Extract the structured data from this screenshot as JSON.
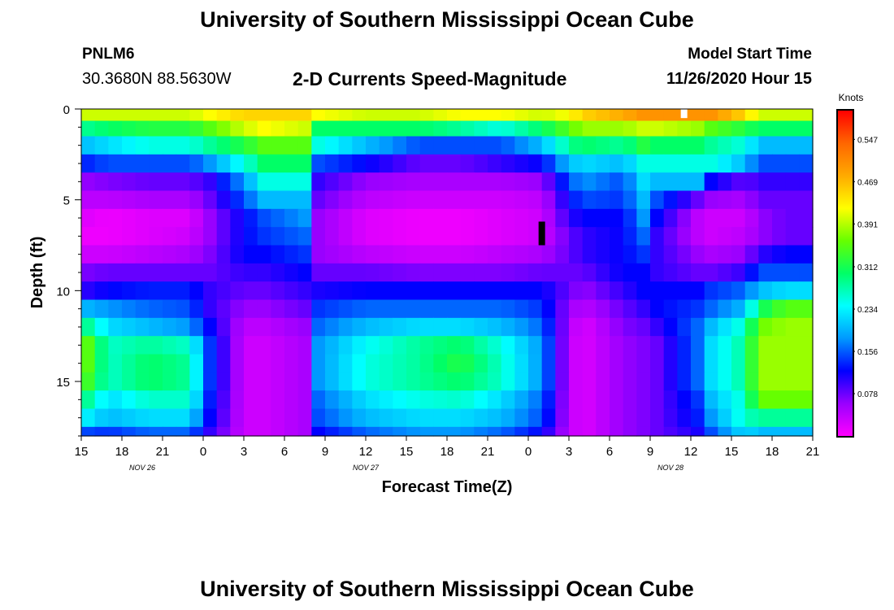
{
  "header": {
    "title": "University of Southern Mississippi Ocean Cube",
    "station_id": "PNLM6",
    "coordinates": "30.3680N 88.5630W",
    "subtitle": "2-D Currents Speed-Magnitude",
    "model_start_label": "Model Start Time",
    "model_start_value": "11/26/2020 Hour 15"
  },
  "footer": {
    "title": "University of Southern Mississippi Ocean Cube"
  },
  "chart_data": {
    "type": "heatmap",
    "title": "2-D Currents Speed-Magnitude",
    "xlabel": "Forecast Time(Z)",
    "ylabel": "Depth (ft)",
    "colorbar_label": "Knots",
    "x_range_hours": [
      0,
      54
    ],
    "y_range_ft": [
      0,
      18
    ],
    "y_inverted": true,
    "x_tick_labels": [
      "15",
      "18",
      "21",
      "0",
      "3",
      "6",
      "9",
      "12",
      "15",
      "18",
      "21",
      "0",
      "3",
      "6",
      "9",
      "12",
      "15",
      "18",
      "21"
    ],
    "x_date_labels": [
      {
        "label": "NOV  26",
        "hour": 4.5
      },
      {
        "label": "NOV  27",
        "hour": 21
      },
      {
        "label": "NOV  28",
        "hour": 43.5
      }
    ],
    "y_ticks": [
      0,
      5,
      10,
      15
    ],
    "colorbar_ticks": [
      "0.547",
      "0.469",
      "0.391",
      "0.312",
      "0.234",
      "0.156",
      "0.078"
    ],
    "colorbar_range": [
      0,
      0.6
    ],
    "colorbar_colors": [
      "#ff00ff",
      "#9900ff",
      "#0000ff",
      "#0099ff",
      "#00ffff",
      "#00ff66",
      "#66ff00",
      "#ffff00",
      "#ffaa00",
      "#ff6600",
      "#ff0000"
    ],
    "depth_bins_ft": [
      0.3,
      1.0,
      2.0,
      3.0,
      4.0,
      5.0,
      6.0,
      7.0,
      8.0,
      9.0,
      10.0,
      11.0,
      12.0,
      13.0,
      14.0,
      15.0,
      16.0,
      17.0,
      18.0
    ],
    "time_knots_hours": [
      0,
      2,
      5,
      8,
      9.5,
      12,
      13.5,
      16.5,
      17.5,
      21,
      25,
      28,
      31,
      34,
      36,
      37,
      40,
      41.5,
      42.5,
      45.5,
      46.5,
      49,
      50,
      52,
      54
    ],
    "speed_knots_by_depth": [
      [
        0.4,
        0.4,
        0.4,
        0.4,
        0.42,
        0.45,
        0.45,
        0.45,
        0.42,
        0.4,
        0.4,
        0.42,
        0.42,
        0.4,
        0.42,
        0.45,
        0.48,
        0.5,
        0.5,
        0.5,
        0.5,
        0.45,
        0.4,
        0.4,
        0.4
      ],
      [
        0.28,
        0.3,
        0.32,
        0.32,
        0.35,
        0.4,
        0.42,
        0.4,
        0.3,
        0.3,
        0.3,
        0.28,
        0.25,
        0.3,
        0.35,
        0.38,
        0.38,
        0.4,
        0.4,
        0.38,
        0.35,
        0.32,
        0.3,
        0.3,
        0.3
      ],
      [
        0.2,
        0.22,
        0.25,
        0.25,
        0.28,
        0.32,
        0.35,
        0.35,
        0.25,
        0.2,
        0.15,
        0.15,
        0.15,
        0.2,
        0.28,
        0.3,
        0.28,
        0.32,
        0.3,
        0.3,
        0.28,
        0.25,
        0.2,
        0.2,
        0.2
      ],
      [
        0.13,
        0.15,
        0.15,
        0.15,
        0.18,
        0.25,
        0.3,
        0.3,
        0.15,
        0.12,
        0.08,
        0.08,
        0.1,
        0.12,
        0.2,
        0.22,
        0.2,
        0.25,
        0.25,
        0.25,
        0.25,
        0.2,
        0.15,
        0.15,
        0.15
      ],
      [
        0.06,
        0.07,
        0.08,
        0.08,
        0.1,
        0.18,
        0.25,
        0.25,
        0.1,
        0.06,
        0.05,
        0.05,
        0.05,
        0.06,
        0.15,
        0.18,
        0.15,
        0.22,
        0.2,
        0.2,
        0.12,
        0.08,
        0.1,
        0.1,
        0.1
      ],
      [
        0.04,
        0.04,
        0.05,
        0.05,
        0.08,
        0.15,
        0.2,
        0.2,
        0.08,
        0.04,
        0.03,
        0.03,
        0.03,
        0.04,
        0.12,
        0.15,
        0.14,
        0.2,
        0.15,
        0.08,
        0.06,
        0.05,
        0.08,
        0.08,
        0.08
      ],
      [
        0.02,
        0.01,
        0.02,
        0.02,
        0.06,
        0.12,
        0.15,
        0.18,
        0.06,
        0.02,
        0.01,
        0.01,
        0.02,
        0.03,
        0.1,
        0.12,
        0.12,
        0.18,
        0.12,
        0.04,
        0.03,
        0.03,
        0.06,
        0.08,
        0.08
      ],
      [
        0.01,
        0.01,
        0.02,
        0.03,
        0.06,
        0.12,
        0.14,
        0.16,
        0.06,
        0.02,
        0.01,
        0.01,
        0.02,
        0.03,
        0.08,
        0.1,
        0.12,
        0.16,
        0.1,
        0.04,
        0.03,
        0.04,
        0.06,
        0.08,
        0.08
      ],
      [
        0.03,
        0.03,
        0.04,
        0.05,
        0.07,
        0.12,
        0.12,
        0.14,
        0.06,
        0.04,
        0.03,
        0.03,
        0.04,
        0.05,
        0.08,
        0.1,
        0.12,
        0.14,
        0.1,
        0.06,
        0.05,
        0.06,
        0.1,
        0.12,
        0.12
      ],
      [
        0.07,
        0.08,
        0.08,
        0.08,
        0.08,
        0.1,
        0.1,
        0.12,
        0.08,
        0.08,
        0.07,
        0.07,
        0.07,
        0.08,
        0.08,
        0.08,
        0.12,
        0.12,
        0.1,
        0.08,
        0.08,
        0.1,
        0.15,
        0.15,
        0.15
      ],
      [
        0.1,
        0.12,
        0.13,
        0.13,
        0.1,
        0.08,
        0.08,
        0.1,
        0.11,
        0.12,
        0.12,
        0.12,
        0.12,
        0.12,
        0.08,
        0.06,
        0.1,
        0.12,
        0.12,
        0.12,
        0.14,
        0.16,
        0.2,
        0.22,
        0.22
      ],
      [
        0.2,
        0.18,
        0.16,
        0.15,
        0.1,
        0.06,
        0.06,
        0.08,
        0.14,
        0.16,
        0.16,
        0.16,
        0.16,
        0.14,
        0.06,
        0.04,
        0.08,
        0.1,
        0.12,
        0.14,
        0.16,
        0.2,
        0.3,
        0.35,
        0.35
      ],
      [
        0.3,
        0.22,
        0.2,
        0.18,
        0.12,
        0.04,
        0.04,
        0.06,
        0.16,
        0.2,
        0.22,
        0.22,
        0.2,
        0.16,
        0.05,
        0.02,
        0.07,
        0.08,
        0.1,
        0.16,
        0.2,
        0.26,
        0.36,
        0.38,
        0.38
      ],
      [
        0.38,
        0.26,
        0.28,
        0.26,
        0.14,
        0.03,
        0.03,
        0.05,
        0.18,
        0.24,
        0.28,
        0.3,
        0.25,
        0.18,
        0.04,
        0.02,
        0.06,
        0.07,
        0.08,
        0.16,
        0.22,
        0.28,
        0.38,
        0.38,
        0.38
      ],
      [
        0.38,
        0.26,
        0.3,
        0.28,
        0.14,
        0.03,
        0.03,
        0.05,
        0.18,
        0.25,
        0.28,
        0.32,
        0.26,
        0.18,
        0.04,
        0.02,
        0.06,
        0.07,
        0.08,
        0.16,
        0.22,
        0.28,
        0.38,
        0.38,
        0.38
      ],
      [
        0.36,
        0.26,
        0.3,
        0.28,
        0.14,
        0.03,
        0.03,
        0.05,
        0.18,
        0.25,
        0.28,
        0.3,
        0.26,
        0.18,
        0.04,
        0.02,
        0.06,
        0.07,
        0.08,
        0.16,
        0.22,
        0.28,
        0.38,
        0.38,
        0.38
      ],
      [
        0.3,
        0.22,
        0.26,
        0.26,
        0.13,
        0.03,
        0.03,
        0.05,
        0.16,
        0.22,
        0.25,
        0.26,
        0.22,
        0.16,
        0.04,
        0.02,
        0.06,
        0.07,
        0.08,
        0.14,
        0.2,
        0.26,
        0.36,
        0.36,
        0.36
      ],
      [
        0.24,
        0.2,
        0.22,
        0.22,
        0.12,
        0.03,
        0.03,
        0.05,
        0.15,
        0.2,
        0.22,
        0.22,
        0.2,
        0.15,
        0.04,
        0.02,
        0.06,
        0.07,
        0.08,
        0.13,
        0.18,
        0.26,
        0.28,
        0.28,
        0.28
      ],
      [
        0.15,
        0.14,
        0.16,
        0.16,
        0.1,
        0.03,
        0.03,
        0.05,
        0.12,
        0.16,
        0.18,
        0.18,
        0.16,
        0.12,
        0.04,
        0.02,
        0.06,
        0.07,
        0.08,
        0.11,
        0.15,
        0.22,
        0.2,
        0.2,
        0.2
      ]
    ],
    "markers": [
      {
        "color": "#ffffff",
        "hour": 44.5,
        "depth_from": 0.0,
        "depth_to": 0.5
      },
      {
        "color": "#000000",
        "hour": 34.0,
        "depth_from": 6.2,
        "depth_to": 7.5
      }
    ]
  }
}
